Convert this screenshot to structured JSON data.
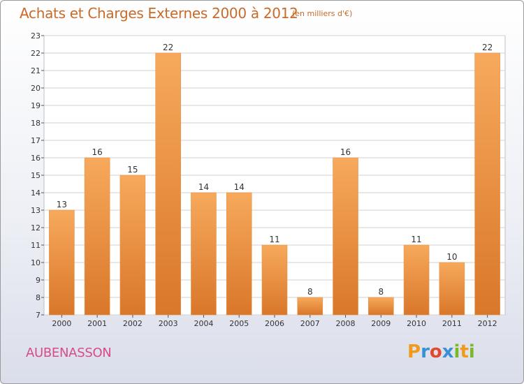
{
  "header": {
    "title": "Achats et Charges Externes 2000 à 2012",
    "unit": "(en milliers d'€)"
  },
  "footer": {
    "commune": "AUBENASSON",
    "logo": "Proxiti"
  },
  "colors": {
    "bar_light": "#f7a95c",
    "bar_dark": "#d9772a",
    "title": "#c86a28",
    "commune": "#d64b8a"
  },
  "chart_data": {
    "type": "bar",
    "title": "Achats et Charges Externes 2000 à 2012",
    "subtitle": "(en milliers d'€)",
    "xlabel": "",
    "ylabel": "",
    "categories": [
      "2000",
      "2001",
      "2002",
      "2003",
      "2004",
      "2005",
      "2006",
      "2007",
      "2008",
      "2009",
      "2010",
      "2011",
      "2012"
    ],
    "values": [
      13,
      16,
      15,
      22,
      14,
      14,
      11,
      8,
      16,
      8,
      11,
      10,
      22
    ],
    "ylim": [
      7,
      23
    ],
    "yticks": [
      7,
      8,
      9,
      10,
      11,
      12,
      13,
      14,
      15,
      16,
      17,
      18,
      19,
      20,
      21,
      22,
      23
    ],
    "grid": true,
    "data_labels": true
  }
}
